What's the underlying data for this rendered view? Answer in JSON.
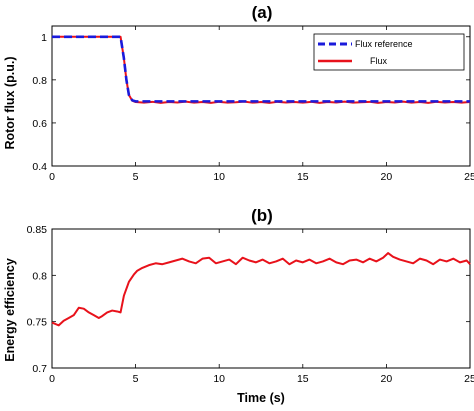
{
  "chart_data": [
    {
      "type": "line",
      "title": "(a)",
      "xlabel": "",
      "ylabel": "Rotor flux (p.u.)",
      "xlim": [
        0,
        25
      ],
      "ylim": [
        0.4,
        1.05
      ],
      "xticks": [
        "0",
        "5",
        "10",
        "15",
        "20",
        "25"
      ],
      "yticks": [
        "0.4",
        "0.6",
        "0.8",
        "1"
      ],
      "xtick_values": [
        0,
        5,
        10,
        15,
        20,
        25
      ],
      "ytick_values": [
        0.4,
        0.6,
        0.8,
        1.0
      ],
      "grid": false,
      "legend": {
        "position": "top-right",
        "entries": [
          "Flux reference",
          "Flux"
        ]
      },
      "series": [
        {
          "name": "Flux reference",
          "color": "#1a1adb",
          "style": "dashed",
          "x": [
            0,
            4.1,
            4.3,
            4.45,
            4.6,
            4.8,
            5,
            6,
            8,
            10,
            12,
            14,
            16,
            18,
            20,
            22,
            24,
            25
          ],
          "y": [
            1.0,
            1.0,
            0.9,
            0.8,
            0.73,
            0.705,
            0.7,
            0.7,
            0.7,
            0.7,
            0.7,
            0.7,
            0.7,
            0.7,
            0.7,
            0.7,
            0.7,
            0.7
          ]
        },
        {
          "name": "Flux",
          "color": "#e8121b",
          "style": "solid",
          "x": [
            0,
            4.1,
            4.3,
            4.45,
            4.6,
            4.8,
            5,
            5.5,
            6,
            6.5,
            7,
            7.5,
            8,
            8.5,
            9,
            9.5,
            10,
            10.5,
            11,
            11.5,
            12,
            12.5,
            13,
            13.5,
            14,
            14.5,
            15,
            15.5,
            16,
            16.5,
            17,
            17.5,
            18,
            18.5,
            19,
            19.5,
            20,
            20.5,
            21,
            21.5,
            22,
            22.5,
            23,
            23.5,
            24,
            24.5,
            25
          ],
          "y": [
            1.0,
            1.0,
            0.9,
            0.8,
            0.73,
            0.703,
            0.697,
            0.694,
            0.698,
            0.693,
            0.697,
            0.695,
            0.699,
            0.694,
            0.697,
            0.693,
            0.698,
            0.694,
            0.696,
            0.699,
            0.694,
            0.697,
            0.693,
            0.698,
            0.695,
            0.697,
            0.694,
            0.698,
            0.693,
            0.697,
            0.695,
            0.699,
            0.694,
            0.696,
            0.698,
            0.693,
            0.697,
            0.695,
            0.699,
            0.694,
            0.697,
            0.693,
            0.698,
            0.695,
            0.697,
            0.694,
            0.697
          ]
        }
      ]
    },
    {
      "type": "line",
      "title": "(b)",
      "xlabel": "Time (s)",
      "ylabel": "Energy efficiency",
      "xlim": [
        0,
        25
      ],
      "ylim": [
        0.7,
        0.85
      ],
      "xticks": [
        "0",
        "5",
        "10",
        "15",
        "20",
        "25"
      ],
      "yticks": [
        "0.7",
        "0.75",
        "0.8",
        "0.85"
      ],
      "xtick_values": [
        0,
        5,
        10,
        15,
        20,
        25
      ],
      "ytick_values": [
        0.7,
        0.75,
        0.8,
        0.85
      ],
      "grid": false,
      "series": [
        {
          "color": "#e8121b",
          "style": "solid",
          "x": [
            0,
            0.4,
            0.7,
            1.0,
            1.3,
            1.6,
            1.9,
            2.2,
            2.5,
            2.8,
            3.0,
            3.3,
            3.6,
            3.9,
            4.1,
            4.3,
            4.6,
            4.9,
            5.1,
            5.4,
            5.8,
            6.2,
            6.6,
            7.0,
            7.4,
            7.8,
            8.2,
            8.6,
            9.0,
            9.4,
            9.8,
            10.2,
            10.6,
            11.0,
            11.4,
            11.8,
            12.2,
            12.6,
            13.0,
            13.4,
            13.8,
            14.2,
            14.6,
            15.0,
            15.4,
            15.8,
            16.2,
            16.6,
            17.0,
            17.4,
            17.8,
            18.2,
            18.6,
            19.0,
            19.4,
            19.8,
            20.1,
            20.4,
            20.8,
            21.2,
            21.6,
            22.0,
            22.4,
            22.8,
            23.2,
            23.6,
            24.0,
            24.4,
            24.8,
            25.0
          ],
          "y": [
            0.749,
            0.746,
            0.751,
            0.754,
            0.757,
            0.765,
            0.764,
            0.76,
            0.757,
            0.754,
            0.756,
            0.76,
            0.762,
            0.761,
            0.76,
            0.778,
            0.793,
            0.801,
            0.805,
            0.808,
            0.811,
            0.813,
            0.812,
            0.814,
            0.816,
            0.818,
            0.815,
            0.813,
            0.818,
            0.819,
            0.813,
            0.815,
            0.817,
            0.812,
            0.819,
            0.816,
            0.814,
            0.817,
            0.813,
            0.815,
            0.818,
            0.812,
            0.816,
            0.814,
            0.817,
            0.813,
            0.815,
            0.818,
            0.814,
            0.812,
            0.816,
            0.817,
            0.814,
            0.818,
            0.815,
            0.819,
            0.824,
            0.82,
            0.817,
            0.815,
            0.813,
            0.818,
            0.816,
            0.812,
            0.817,
            0.815,
            0.818,
            0.814,
            0.816,
            0.812
          ]
        }
      ]
    }
  ]
}
